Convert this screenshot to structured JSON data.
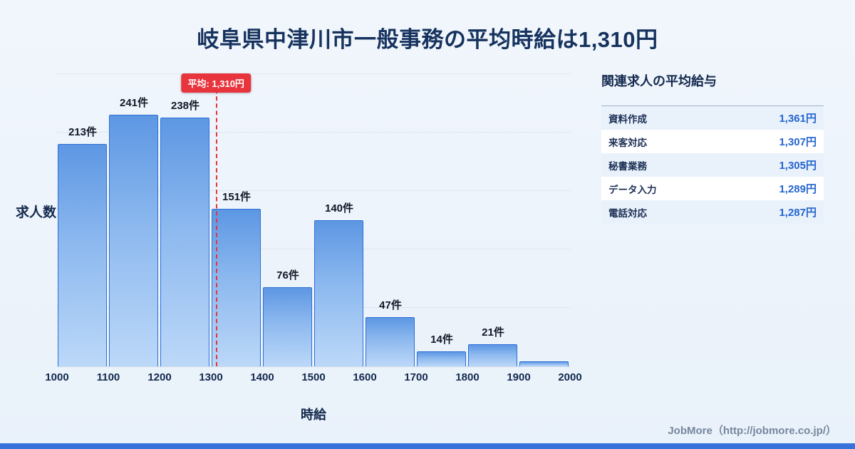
{
  "page": {
    "title": "岐阜県中津川市一般事務の平均時給は1,310円",
    "footer": "JobMore（http://jobmore.co.jp/）"
  },
  "chart_data": {
    "type": "bar",
    "title": "岐阜県中津川市一般事務の平均時給は1,310円",
    "xlabel": "時給",
    "ylabel": "求人数",
    "x_ticks": [
      1000,
      1100,
      1200,
      1300,
      1400,
      1500,
      1600,
      1700,
      1800,
      1900,
      2000
    ],
    "bin_width": 100,
    "values": [
      213,
      241,
      238,
      151,
      76,
      140,
      47,
      14,
      21,
      5
    ],
    "bar_labels": [
      "213件",
      "241件",
      "238件",
      "151件",
      "76件",
      "140件",
      "47件",
      "14件",
      "21件",
      ""
    ],
    "ylim": [
      0,
      280
    ],
    "grid": true,
    "legend": "none",
    "average": {
      "value": 1310,
      "label": "平均: 1,310円"
    }
  },
  "sidebar": {
    "title": "関連求人の平均給与",
    "rows": [
      {
        "label": "資料作成",
        "value": "1,361円"
      },
      {
        "label": "来客対応",
        "value": "1,307円"
      },
      {
        "label": "秘書業務",
        "value": "1,305円"
      },
      {
        "label": "データ入力",
        "value": "1,289円"
      },
      {
        "label": "電話対応",
        "value": "1,287円"
      }
    ]
  },
  "colors": {
    "title_text": "#16325e",
    "bar_fill_top": "#5d97e3",
    "bar_fill_bottom": "#bcd8f8",
    "bar_border": "#2d6fd8",
    "average_line": "#e8343d",
    "value_accent": "#2465cf",
    "bottom_bar": "#3672d9"
  }
}
